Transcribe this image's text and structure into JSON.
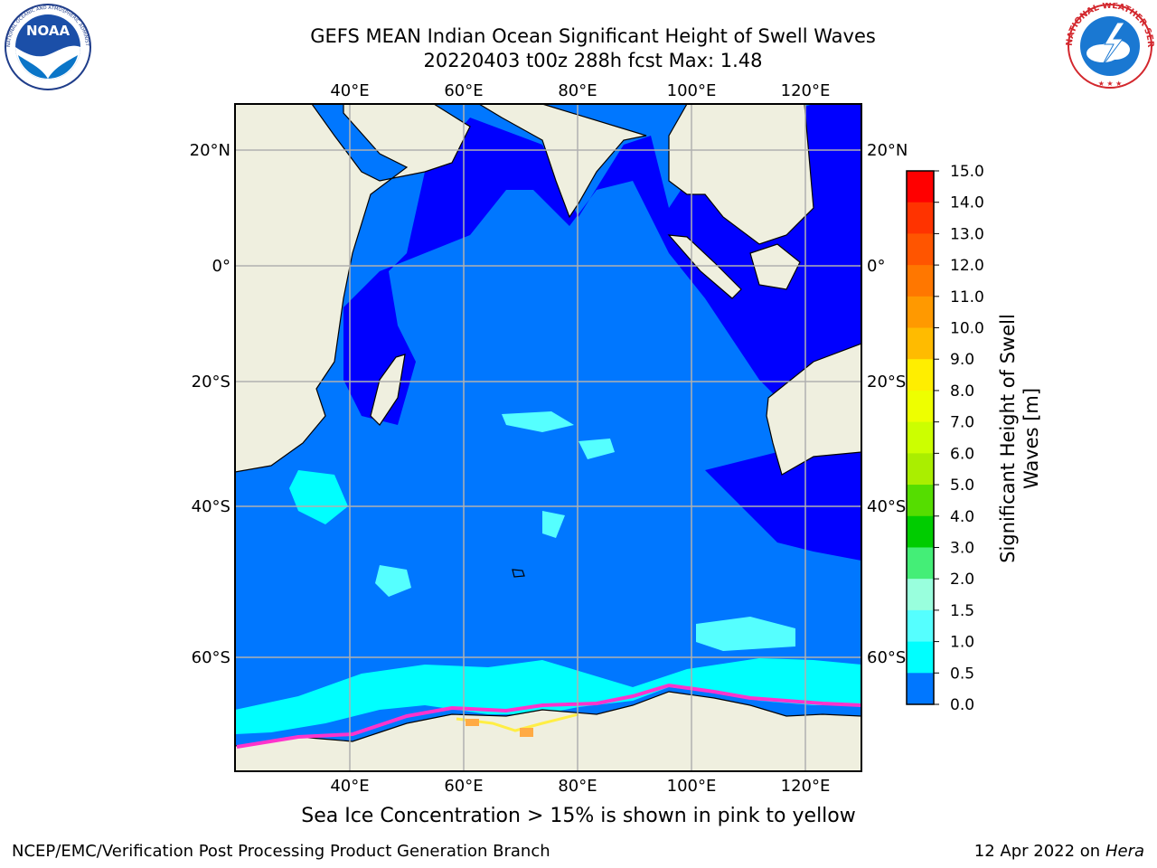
{
  "header": {
    "title_line1": "GEFS MEAN Indian Ocean Significant Height of Swell Waves",
    "title_line2": "20220403 t00z 288h fcst   Max: 1.48"
  },
  "logos": {
    "left": {
      "name": "NOAA",
      "text": "NOAA",
      "ring_text": "NATIONAL OCEANIC AND ATMOSPHERIC ADMINISTRATION · U.S. DEPARTMENT OF COMMERCE"
    },
    "right": {
      "name": "National Weather Service",
      "ring_text": "NATIONAL WEATHER SERVICE"
    }
  },
  "map": {
    "lon_labels": [
      "40°E",
      "60°E",
      "80°E",
      "100°E",
      "120°E"
    ],
    "lat_labels": [
      "20°N",
      "0°",
      "20°S",
      "40°S",
      "60°S"
    ],
    "colors": {
      "land": "#efefdf",
      "sea_0_05": "#0000ff",
      "sea_05_10": "#0077ff",
      "sea_10_15": "#00ffff",
      "sea_15_20": "#55ffff",
      "ice_pink": "#ff33cc",
      "ice_orange": "#ffaa44",
      "ice_yellow": "#ffee44",
      "grid": "#b0b0b0"
    }
  },
  "colorbar": {
    "title_line1": "Significant Height of Swell",
    "title_line2": "Waves [m]",
    "ticks": [
      "15.0",
      "14.0",
      "13.0",
      "12.0",
      "11.0",
      "10.0",
      "9.0",
      "8.0",
      "7.0",
      "6.0",
      "5.0",
      "4.0",
      "3.0",
      "2.0",
      "1.5",
      "1.0",
      "0.5",
      "0.0"
    ],
    "colors_top_to_bottom": [
      "#ff0000",
      "#ff3300",
      "#ff5500",
      "#ff7700",
      "#ff9900",
      "#ffbb00",
      "#ffee00",
      "#eeff00",
      "#ccff00",
      "#aaee00",
      "#55dd00",
      "#00cc00",
      "#44ee77",
      "#99ffdd",
      "#55ffff",
      "#00ffff",
      "#0077ff",
      "#0000ff"
    ]
  },
  "caption": "Sea Ice Concentration > 15% is shown in pink to yellow",
  "footer": {
    "left": "NCEP/EMC/Verification Post Processing Product Generation Branch",
    "right_prefix": "12 Apr 2022 on ",
    "right_host": "Hera"
  }
}
